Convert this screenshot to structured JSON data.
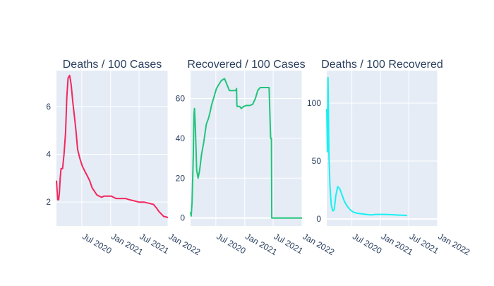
{
  "chart_data": [
    {
      "type": "line",
      "title": "Deaths / 100 Cases",
      "xlabel": "",
      "ylabel": "",
      "x_tick_labels": [
        "Jul 2020",
        "Jan 2021",
        "Jul 2021",
        "Jan 2022"
      ],
      "x_ticks": [
        "2020-07-01",
        "2021-01-01",
        "2021-07-01",
        "2022-01-01"
      ],
      "xlim": [
        "2020-01-22",
        "2022-01-01"
      ],
      "y_ticks": [
        2,
        4,
        6
      ],
      "ylim": [
        1.0,
        7.5
      ],
      "grid": true,
      "color": "#f2285e",
      "series": [
        {
          "x": [
            "2020-01-22",
            "2020-01-30",
            "2020-02-05",
            "2020-02-10",
            "2020-02-15",
            "2020-02-20",
            "2020-03-01",
            "2020-03-10",
            "2020-03-20",
            "2020-03-28",
            "2020-04-05",
            "2020-04-15",
            "2020-04-25",
            "2020-05-05",
            "2020-05-15",
            "2020-05-25",
            "2020-06-05",
            "2020-06-20",
            "2020-07-05",
            "2020-07-20",
            "2020-08-05",
            "2020-08-20",
            "2020-09-05",
            "2020-09-20",
            "2020-10-05",
            "2020-10-20",
            "2020-11-05",
            "2020-11-20",
            "2020-12-05",
            "2020-12-20",
            "2021-01-05",
            "2021-01-20",
            "2021-02-05",
            "2021-02-20",
            "2021-03-05",
            "2021-03-20",
            "2021-04-05",
            "2021-05-01",
            "2021-06-01",
            "2021-07-01",
            "2021-08-01",
            "2021-09-01",
            "2021-10-01",
            "2021-10-20",
            "2021-11-05",
            "2021-11-20",
            "2021-12-05",
            "2021-12-20",
            "2022-01-01"
          ],
          "y": [
            2.9,
            2.1,
            2.1,
            2.4,
            3.0,
            3.4,
            3.4,
            4.0,
            4.9,
            6.4,
            7.2,
            7.3,
            6.9,
            6.2,
            5.6,
            5.0,
            4.2,
            3.8,
            3.5,
            3.3,
            3.1,
            2.9,
            2.6,
            2.45,
            2.3,
            2.25,
            2.2,
            2.25,
            2.25,
            2.25,
            2.25,
            2.2,
            2.15,
            2.15,
            2.15,
            2.15,
            2.15,
            2.1,
            2.05,
            2.0,
            2.0,
            1.95,
            1.9,
            1.75,
            1.6,
            1.5,
            1.4,
            1.38,
            1.35
          ]
        }
      ]
    },
    {
      "type": "line",
      "title": "Recovered / 100 Cases",
      "xlabel": "",
      "ylabel": "",
      "x_tick_labels": [
        "Jul 2020",
        "Jan 2021",
        "Jul 2021",
        "Jan 2022"
      ],
      "x_ticks": [
        "2020-07-01",
        "2021-01-01",
        "2021-07-01",
        "2022-01-01"
      ],
      "xlim": [
        "2020-01-22",
        "2022-01-01"
      ],
      "y_ticks": [
        0,
        20,
        40,
        60
      ],
      "ylim": [
        -4,
        74
      ],
      "grid": true,
      "color": "#21c47b",
      "series": [
        {
          "x": [
            "2020-01-22",
            "2020-01-26",
            "2020-02-01",
            "2020-02-08",
            "2020-02-13",
            "2020-02-16",
            "2020-02-22",
            "2020-03-01",
            "2020-03-10",
            "2020-03-20",
            "2020-04-01",
            "2020-04-15",
            "2020-05-01",
            "2020-05-15",
            "2020-05-25",
            "2020-06-05",
            "2020-06-20",
            "2020-07-05",
            "2020-07-20",
            "2020-08-05",
            "2020-08-25",
            "2020-09-10",
            "2020-09-25",
            "2020-10-05",
            "2020-10-20",
            "2020-11-05",
            "2020-11-10",
            "2020-11-12",
            "2020-11-14",
            "2020-11-20",
            "2020-11-30",
            "2020-12-10",
            "2020-12-25",
            "2021-01-10",
            "2021-02-01",
            "2021-02-20",
            "2021-03-10",
            "2021-03-25",
            "2021-04-10",
            "2021-05-01",
            "2021-05-20",
            "2021-06-05",
            "2021-06-15",
            "2021-06-20",
            "2021-06-22",
            "2021-06-25",
            "2021-06-28",
            "2022-01-01"
          ],
          "y": [
            3,
            1,
            8,
            30,
            52,
            55,
            45,
            24,
            20,
            24,
            32,
            38,
            47,
            50,
            53,
            57,
            61,
            65,
            67,
            69,
            70,
            67,
            64,
            64,
            64,
            64,
            65,
            57,
            56,
            56,
            56,
            55,
            56,
            56.5,
            56.5,
            57,
            60,
            64,
            65.5,
            65.5,
            65.5,
            65.5,
            40,
            40,
            0,
            0,
            0,
            0
          ]
        }
      ]
    },
    {
      "type": "line",
      "title": "Deaths / 100 Recovered",
      "xlabel": "",
      "ylabel": "",
      "x_tick_labels": [
        "Jul 2020",
        "Jan 2021",
        "Jul 2021",
        "Jan 2022"
      ],
      "x_ticks": [
        "2020-07-01",
        "2021-01-01",
        "2021-07-01",
        "2022-01-01"
      ],
      "xlim": [
        "2020-01-22",
        "2022-01-01"
      ],
      "y_ticks": [
        0,
        50,
        100
      ],
      "ylim": [
        -6,
        128
      ],
      "grid": true,
      "color": "#19f0f0",
      "series": [
        {
          "x": [
            "2020-01-22",
            "2020-01-26",
            "2020-01-30",
            "2020-02-05",
            "2020-02-12",
            "2020-02-20",
            "2020-03-01",
            "2020-03-10",
            "2020-03-20",
            "2020-04-01",
            "2020-04-15",
            "2020-05-01",
            "2020-05-15",
            "2020-06-01",
            "2020-06-20",
            "2020-07-10",
            "2020-08-01",
            "2020-09-01",
            "2020-10-01",
            "2020-11-01",
            "2020-12-01",
            "2021-01-01",
            "2021-02-01",
            "2021-03-01",
            "2021-04-01",
            "2021-05-01",
            "2021-06-01",
            "2021-06-20"
          ],
          "y": [
            95,
            58,
            122,
            55,
            28,
            12,
            7,
            8,
            20,
            28,
            26,
            20,
            15,
            11,
            8,
            6,
            5,
            4.5,
            4,
            3.5,
            4,
            4,
            4,
            3.8,
            3.6,
            3.4,
            3.2,
            3.0
          ]
        }
      ]
    }
  ]
}
